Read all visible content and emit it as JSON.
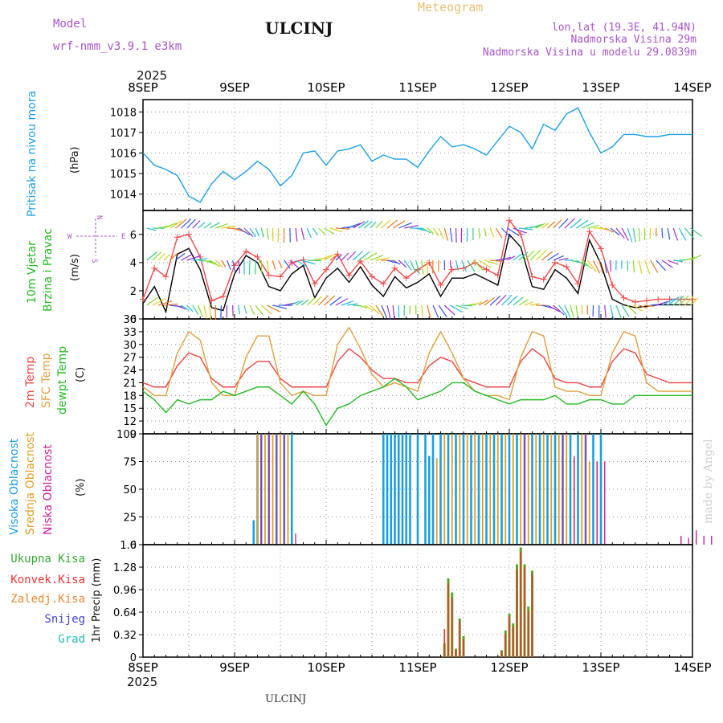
{
  "header": {
    "model_label": "Model",
    "model_name": "wrf-nmm_v3.9.1 e3km",
    "station": "ULCINJ",
    "chart_kind": "Meteogram",
    "coords": "lon,lat (19.3E, 41.94N)",
    "altitude": "Nadmorska Visina 29m",
    "model_altitude": "Nadmorska Visina u modelu 29.0839m",
    "footer_station": "ULCINJ",
    "watermark": "made by Angel",
    "year": "2025"
  },
  "colors": {
    "pressure": "#1ea0e6",
    "wind_speed": "#000000",
    "wind_gust": "#f04a4a",
    "t2m": "#ee4444",
    "sfc": "#e0a040",
    "dewpt": "#22bb22",
    "high_cloud": "#1aa0e0",
    "mid_cloud": "#e0a020",
    "low_cloud": "#cc2299",
    "total_rain": "#55aa22",
    "convective_rain": "#ee3333",
    "frozen_rain": "#ee8833",
    "snow": "#4444dd",
    "graupel": "#22bbbb",
    "grid": "#999999",
    "label_purple": "#aa55cc"
  },
  "chart_data": [
    {
      "type": "line",
      "id": "pressure",
      "title": "Pritisak na nivou mora",
      "ylabel": "(hPa)",
      "ylim": [
        1013.2,
        1018.6
      ],
      "yticks": [
        1014,
        1015,
        1016,
        1017,
        1018
      ],
      "series": [
        {
          "name": "Pressure",
          "x": [
            0,
            3,
            6,
            9,
            12,
            15,
            18,
            21,
            24,
            27,
            30,
            33,
            36,
            39,
            42,
            45,
            48,
            51,
            54,
            57,
            60,
            63,
            66,
            69,
            72,
            75,
            78,
            81,
            84,
            87,
            90,
            93,
            96,
            99,
            102,
            105,
            108,
            111,
            114,
            117,
            120,
            123,
            126,
            129,
            132,
            135,
            138,
            141,
            144
          ],
          "values": [
            1016.0,
            1015.4,
            1015.2,
            1014.9,
            1013.9,
            1013.6,
            1014.5,
            1015.1,
            1014.7,
            1015.1,
            1015.6,
            1015.2,
            1014.4,
            1014.9,
            1016.0,
            1016.1,
            1015.4,
            1016.1,
            1016.2,
            1016.4,
            1015.6,
            1015.9,
            1015.7,
            1015.7,
            1015.3,
            1016.1,
            1016.8,
            1016.3,
            1016.4,
            1016.2,
            1015.9,
            1016.6,
            1017.3,
            1017.0,
            1016.2,
            1017.4,
            1017.1,
            1017.9,
            1018.2,
            1017.0,
            1016.0,
            1016.3,
            1016.9,
            1016.9,
            1016.8,
            1016.8,
            1016.9,
            1016.9,
            1016.9
          ]
        }
      ]
    },
    {
      "type": "line",
      "id": "wind",
      "title_line1": "10m Vjetar",
      "title_line2": "Brzina i Pravac",
      "ylabel": "(m/s)",
      "ylim": [
        0,
        7.7
      ],
      "yticks": [
        0,
        2,
        4,
        6
      ],
      "compass": {
        "n": "N",
        "s": "S",
        "e": "E",
        "w": "W"
      },
      "series": [
        {
          "name": "Wind speed",
          "x": [
            0,
            3,
            6,
            9,
            12,
            15,
            18,
            21,
            24,
            27,
            30,
            33,
            36,
            39,
            42,
            45,
            48,
            51,
            54,
            57,
            60,
            63,
            66,
            69,
            72,
            75,
            78,
            81,
            84,
            87,
            90,
            93,
            96,
            99,
            102,
            105,
            108,
            111,
            114,
            117,
            120,
            123,
            126,
            129,
            132,
            135,
            138,
            141,
            144
          ],
          "values": [
            1.1,
            2.3,
            0.5,
            4.6,
            5.0,
            3.5,
            0.8,
            0.6,
            3.2,
            4.5,
            4.0,
            2.3,
            2.0,
            3.2,
            3.8,
            1.5,
            2.9,
            3.6,
            2.6,
            3.7,
            2.4,
            1.6,
            3.0,
            2.2,
            2.6,
            3.2,
            1.6,
            2.9,
            2.9,
            3.2,
            2.8,
            2.4,
            6.0,
            5.1,
            2.3,
            2.1,
            3.5,
            2.9,
            1.8,
            5.6,
            3.9,
            1.4,
            1.0,
            0.8,
            0.9,
            1.0,
            1.0,
            1.0,
            1.0
          ]
        },
        {
          "name": "Wind gust",
          "x": [
            0,
            3,
            6,
            9,
            12,
            15,
            18,
            21,
            24,
            27,
            30,
            33,
            36,
            39,
            42,
            45,
            48,
            51,
            54,
            57,
            60,
            63,
            66,
            69,
            72,
            75,
            78,
            81,
            84,
            87,
            90,
            93,
            96,
            99,
            102,
            105,
            108,
            111,
            114,
            117,
            120,
            123,
            126,
            129,
            132,
            135,
            138,
            141,
            144
          ],
          "values": [
            1.4,
            3.6,
            3.0,
            5.8,
            6.0,
            4.4,
            1.3,
            1.6,
            3.8,
            4.8,
            4.4,
            3.1,
            3.0,
            4.0,
            4.2,
            2.5,
            3.5,
            4.6,
            3.1,
            4.1,
            3.0,
            2.5,
            3.6,
            2.9,
            3.5,
            4.0,
            2.4,
            3.5,
            3.6,
            4.0,
            3.5,
            3.1,
            7.0,
            6.0,
            3.0,
            2.8,
            4.0,
            3.7,
            2.5,
            6.2,
            5.0,
            2.4,
            1.5,
            1.2,
            1.3,
            1.4,
            1.4,
            1.4,
            1.4
          ]
        }
      ]
    },
    {
      "type": "line",
      "id": "temperature",
      "title_line1": "2m Temp",
      "title_line2": "SFC Temp",
      "title_line3": "dewpt Temp",
      "ylabel": "(C)",
      "ylim": [
        9,
        36
      ],
      "yticks": [
        9,
        12,
        15,
        18,
        21,
        24,
        27,
        30,
        33,
        36
      ],
      "series": [
        {
          "name": "2m Temp",
          "x": [
            0,
            3,
            6,
            9,
            12,
            15,
            18,
            21,
            24,
            27,
            30,
            33,
            36,
            39,
            42,
            45,
            48,
            51,
            54,
            57,
            60,
            63,
            66,
            69,
            72,
            75,
            78,
            81,
            84,
            87,
            90,
            93,
            96,
            99,
            102,
            105,
            108,
            111,
            114,
            117,
            120,
            123,
            126,
            129,
            132,
            135,
            138,
            141,
            144
          ],
          "values": [
            21,
            20,
            20,
            25,
            28,
            27,
            22,
            20,
            20,
            24,
            26,
            26,
            22,
            20,
            20,
            20,
            20,
            26,
            29,
            27,
            24,
            22,
            22,
            21,
            21,
            25,
            27,
            26,
            22,
            21,
            20,
            20,
            20,
            26,
            29,
            27,
            22,
            21,
            21,
            20,
            20,
            26,
            29,
            28,
            23,
            22,
            21,
            21,
            21
          ]
        },
        {
          "name": "SFC Temp",
          "x": [
            0,
            3,
            6,
            9,
            12,
            15,
            18,
            21,
            24,
            27,
            30,
            33,
            36,
            39,
            42,
            45,
            48,
            51,
            54,
            57,
            60,
            63,
            66,
            69,
            72,
            75,
            78,
            81,
            84,
            87,
            90,
            93,
            96,
            99,
            102,
            105,
            108,
            111,
            114,
            117,
            120,
            123,
            126,
            129,
            132,
            135,
            138,
            141,
            144
          ],
          "values": [
            20,
            18,
            18,
            28,
            33,
            31,
            21,
            18,
            18,
            27,
            32,
            32,
            21,
            18,
            19,
            18,
            18,
            30,
            34,
            29,
            23,
            20,
            21,
            20,
            19,
            28,
            33,
            28,
            22,
            19,
            18,
            18,
            17,
            27,
            33,
            32,
            20,
            19,
            19,
            18,
            18,
            28,
            33,
            32,
            21,
            19,
            19,
            19,
            19
          ]
        },
        {
          "name": "dewpt Temp",
          "x": [
            0,
            3,
            6,
            9,
            12,
            15,
            18,
            21,
            24,
            27,
            30,
            33,
            36,
            39,
            42,
            45,
            48,
            51,
            54,
            57,
            60,
            63,
            66,
            69,
            72,
            75,
            78,
            81,
            84,
            87,
            90,
            93,
            96,
            99,
            102,
            105,
            108,
            111,
            114,
            117,
            120,
            123,
            126,
            129,
            132,
            135,
            138,
            141,
            144
          ],
          "values": [
            19,
            17,
            14,
            17,
            16,
            17,
            17,
            19,
            18,
            19,
            20,
            20,
            18,
            16,
            19,
            16,
            11,
            15,
            16,
            18,
            19,
            20,
            22,
            20,
            17,
            18,
            19,
            21,
            21,
            19,
            18,
            17,
            16,
            17,
            17,
            17,
            18,
            16,
            16,
            17,
            17,
            16,
            16,
            18,
            18,
            18,
            18,
            18,
            18
          ]
        }
      ]
    },
    {
      "type": "bar",
      "id": "clouds",
      "title_line1": "Visoka Oblacnost",
      "title_line2": "Srednja Oblacnost",
      "title_line3": "Niska Oblacnost",
      "ylabel": "(%)",
      "ylim": [
        0,
        100
      ],
      "yticks": [
        0,
        25,
        50,
        75,
        100
      ],
      "series": [
        {
          "name": "High",
          "x": [
            29,
            30,
            31,
            33,
            35,
            37,
            39,
            63,
            64,
            65,
            66,
            67,
            68,
            69,
            70,
            72,
            74,
            75,
            76,
            78,
            80,
            82,
            84,
            86,
            88,
            90,
            92,
            94,
            96,
            98,
            100,
            102,
            104,
            106,
            108,
            110,
            112,
            114,
            116,
            118,
            120
          ],
          "values": [
            22,
            100,
            100,
            100,
            100,
            100,
            100,
            100,
            100,
            100,
            100,
            100,
            100,
            100,
            100,
            100,
            100,
            80,
            100,
            100,
            100,
            100,
            100,
            100,
            100,
            100,
            100,
            100,
            100,
            100,
            100,
            100,
            100,
            100,
            100,
            100,
            100,
            100,
            100,
            100,
            100
          ]
        },
        {
          "name": "Mid",
          "x": [
            30,
            32,
            34,
            36,
            38,
            77,
            79,
            81,
            83,
            85,
            87,
            89,
            91,
            93,
            95,
            97,
            99,
            101,
            103,
            105,
            107,
            109,
            111,
            113,
            115,
            117,
            119
          ],
          "values": [
            100,
            100,
            100,
            100,
            100,
            78,
            100,
            100,
            100,
            100,
            100,
            100,
            100,
            100,
            100,
            100,
            100,
            100,
            100,
            100,
            100,
            100,
            100,
            78,
            100,
            75,
            75
          ]
        },
        {
          "name": "Low",
          "x": [
            31,
            33,
            35,
            37,
            40,
            100,
            110,
            113,
            116,
            119,
            121,
            141,
            143,
            145,
            147,
            149
          ],
          "values": [
            100,
            100,
            100,
            100,
            10,
            100,
            100,
            80,
            100,
            75,
            75,
            8,
            6,
            13,
            8,
            8
          ]
        }
      ]
    },
    {
      "type": "bar",
      "id": "precip",
      "title": "1hr Precip (mm)",
      "legend": [
        "Ukupna Kisa",
        "Konvek.Kisa",
        "Zaledj.Kisa",
        "Snijeg",
        "Grad"
      ],
      "ylim": [
        0,
        1.6
      ],
      "yticks": [
        0,
        0.32,
        0.64,
        0.96,
        1.28,
        1.6
      ],
      "series": [
        {
          "name": "Ukupna Kisa",
          "x": [
            79,
            80,
            81,
            82,
            83,
            84,
            85,
            86,
            92,
            94,
            95,
            96,
            97,
            98,
            99,
            100,
            101,
            102,
            103
          ],
          "values": [
            0.2,
            1.12,
            0.92,
            0.12,
            0.55,
            0.3,
            0.0,
            0.0,
            0.0,
            0.1,
            0.38,
            0.62,
            0.48,
            1.32,
            1.56,
            1.32,
            0.72,
            1.23,
            0.0
          ]
        },
        {
          "name": "Konvek.Kisa",
          "x": [
            79,
            80,
            81,
            82,
            83,
            84,
            94,
            95,
            96,
            97,
            98,
            99,
            100,
            101,
            102
          ],
          "values": [
            0.4,
            1.05,
            0.85,
            0.1,
            0.52,
            0.25,
            0.08,
            0.33,
            0.58,
            0.44,
            1.25,
            1.5,
            1.28,
            0.66,
            1.18
          ]
        }
      ]
    }
  ],
  "xaxis": {
    "top_labels": [
      "8SEP",
      "9SEP",
      "10SEP",
      "11SEP",
      "12SEP",
      "13SEP",
      "14SEP"
    ],
    "bottom_labels": [
      "8SEP",
      "9SEP",
      "10SEP",
      "11SEP",
      "12SEP",
      "13SEP",
      "14SEP"
    ],
    "hours_total": 144
  }
}
